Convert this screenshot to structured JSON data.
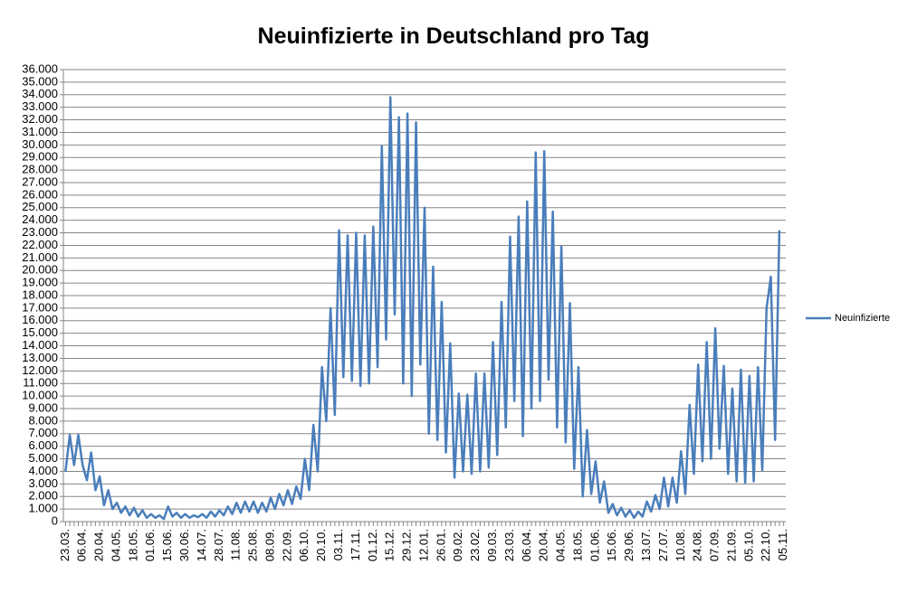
{
  "chart_data": {
    "type": "line",
    "title": "Neuinfizierte in Deutschland pro Tag",
    "categories": [
      "23.03.",
      null,
      null,
      null,
      "06.04.",
      null,
      null,
      null,
      "20.04.",
      null,
      null,
      null,
      "04.05.",
      null,
      null,
      null,
      "18.05.",
      null,
      null,
      null,
      "01.06.",
      null,
      null,
      null,
      "15.06.",
      null,
      null,
      null,
      "30.06.",
      null,
      null,
      null,
      "14.07.",
      null,
      null,
      null,
      "28.07.",
      null,
      null,
      null,
      "11.08.",
      null,
      null,
      null,
      "25.08.",
      null,
      null,
      null,
      "08.09.",
      null,
      null,
      null,
      "22.09.",
      null,
      null,
      null,
      "06.10.",
      null,
      null,
      null,
      "20.10.",
      null,
      null,
      null,
      "03.11.",
      null,
      null,
      null,
      "17.11.",
      null,
      null,
      null,
      "01.12.",
      null,
      null,
      null,
      "15.12.",
      null,
      null,
      null,
      "29.12.",
      null,
      null,
      null,
      "12.01.",
      null,
      null,
      null,
      "26.01.",
      null,
      null,
      null,
      "09.02.",
      null,
      null,
      null,
      "23.02.",
      null,
      null,
      null,
      "09.03.",
      null,
      null,
      null,
      "23.03.",
      null,
      null,
      null,
      "06.04.",
      null,
      null,
      null,
      "20.04.",
      null,
      null,
      null,
      "04.05.",
      null,
      null,
      null,
      "18.05.",
      null,
      null,
      null,
      "01.06.",
      null,
      null,
      null,
      "15.06.",
      null,
      null,
      null,
      "29.06.",
      null,
      null,
      null,
      "13.07.",
      null,
      null,
      null,
      "27.07.",
      null,
      null,
      null,
      "10.08.",
      null,
      null,
      null,
      "24.08.",
      null,
      null,
      null,
      "07.09.",
      null,
      null,
      null,
      "21.09.",
      null,
      null,
      null,
      "05.10.",
      null,
      null,
      null,
      "22.10.",
      null,
      null,
      null,
      "05.11."
    ],
    "series": [
      {
        "name": "Neuinfizierte",
        "color": "#4a7ebb",
        "values": [
          4000,
          6900,
          4500,
          6900,
          4500,
          3300,
          5500,
          2500,
          3600,
          1300,
          2500,
          1000,
          1500,
          700,
          1200,
          500,
          1100,
          400,
          900,
          300,
          600,
          300,
          500,
          200,
          1200,
          400,
          700,
          300,
          600,
          300,
          500,
          350,
          600,
          300,
          800,
          400,
          900,
          500,
          1200,
          600,
          1500,
          700,
          1600,
          800,
          1600,
          700,
          1500,
          800,
          1900,
          1000,
          2200,
          1300,
          2500,
          1400,
          2800,
          1800,
          5000,
          2500,
          7700,
          4000,
          12300,
          8000,
          17000,
          8500,
          23200,
          11500,
          22800,
          11200,
          23000,
          10800,
          22800,
          11000,
          23500,
          12300,
          29900,
          14500,
          33800,
          16500,
          32200,
          11000,
          32500,
          10000,
          31800,
          12500,
          25000,
          7000,
          20300,
          6500,
          17500,
          5500,
          14200,
          3500,
          10200,
          4000,
          10100,
          3800,
          11800,
          4000,
          11800,
          4300,
          14300,
          5300,
          17500,
          7500,
          22700,
          9600,
          24300,
          6800,
          25500,
          9000,
          29400,
          9600,
          29500,
          11300,
          24700,
          7500,
          21900,
          6300,
          17400,
          4200,
          12300,
          2000,
          7300,
          2200,
          4800,
          1500,
          3200,
          700,
          1400,
          500,
          1100,
          400,
          900,
          300,
          800,
          400,
          1600,
          800,
          2100,
          1000,
          3500,
          1200,
          3500,
          1500,
          5600,
          2200,
          9300,
          3800,
          12500,
          4800,
          14300,
          5000,
          15400,
          5800,
          12400,
          3800,
          10600,
          3200,
          12100,
          3100,
          11600,
          3200,
          12300,
          4100,
          17000,
          19500,
          6500,
          23200,
          null
        ]
      }
    ],
    "ylim": [
      0,
      36000
    ],
    "yticks": [
      0,
      {
        "value": 1000,
        "label": "1.000"
      },
      {
        "value": 2000,
        "label": "2.000"
      },
      {
        "value": 3000,
        "label": "3.000"
      },
      {
        "value": 4000,
        "label": "4.000"
      },
      {
        "value": 5000,
        "label": "5.000"
      },
      {
        "value": 6000,
        "label": "6.000"
      },
      {
        "value": 7000,
        "label": "7.000"
      },
      {
        "value": 8000,
        "label": "8.000"
      },
      {
        "value": 9000,
        "label": "9.000"
      },
      {
        "value": 10000,
        "label": "10.000"
      },
      {
        "value": 11000,
        "label": "11.000"
      },
      {
        "value": 12000,
        "label": "12.000"
      },
      {
        "value": 13000,
        "label": "13.000"
      },
      {
        "value": 14000,
        "label": "14.000"
      },
      {
        "value": 15000,
        "label": "15.000"
      },
      {
        "value": 16000,
        "label": "16.000"
      },
      {
        "value": 17000,
        "label": "17.000"
      },
      {
        "value": 18000,
        "label": "18.000"
      },
      {
        "value": 19000,
        "label": "19.000"
      },
      {
        "value": 20000,
        "label": "20.000"
      },
      {
        "value": 21000,
        "label": "21.000"
      },
      {
        "value": 22000,
        "label": "22.000"
      },
      {
        "value": 23000,
        "label": "23.000"
      },
      {
        "value": 24000,
        "label": "24.000"
      },
      {
        "value": 25000,
        "label": "25.000"
      },
      {
        "value": 26000,
        "label": "26.000"
      },
      {
        "value": 27000,
        "label": "27.000"
      },
      {
        "value": 28000,
        "label": "28.000"
      },
      {
        "value": 29000,
        "label": "29.000"
      },
      {
        "value": 30000,
        "label": "30.000"
      },
      {
        "value": 31000,
        "label": "31.000"
      },
      {
        "value": 32000,
        "label": "32.000"
      },
      {
        "value": 33000,
        "label": "33.000"
      },
      {
        "value": 34000,
        "label": "34.000"
      },
      {
        "value": 35000,
        "label": "35.000"
      },
      {
        "value": 36000,
        "label": "36.000"
      }
    ],
    "grid": true,
    "legend": "right"
  }
}
